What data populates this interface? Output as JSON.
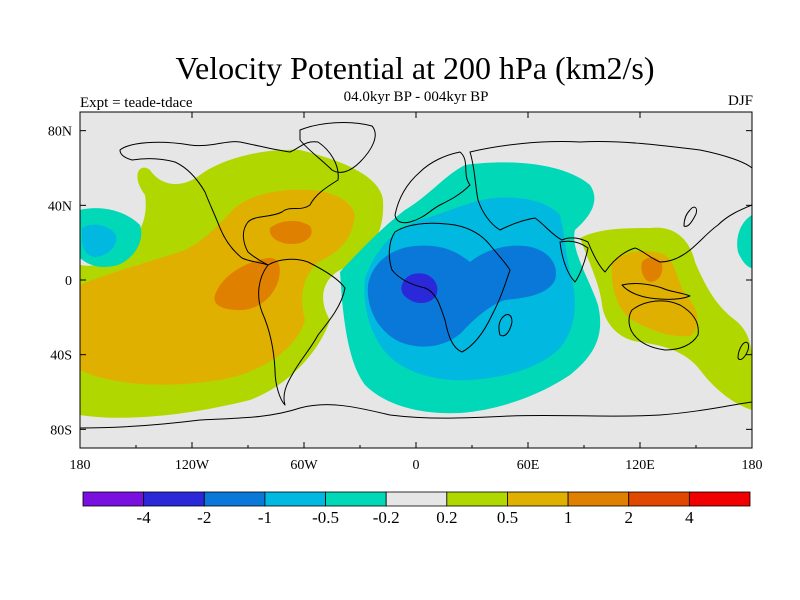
{
  "title": "Velocity Potential at 200 hPa (km2/s)",
  "subtitle": "04.0kyr BP - 004kyr BP",
  "left_label": "Expt = teade-tdace",
  "right_label": "DJF",
  "map": {
    "projection": "cylindrical-equidistant",
    "lon_range": [
      -180,
      180
    ],
    "lat_range": [
      -90,
      90
    ],
    "background_color": "#e6e6e6",
    "coastline_color": "#000000",
    "lon_ticks": [
      {
        "lon": -180,
        "label": "180"
      },
      {
        "lon": -120,
        "label": "120W"
      },
      {
        "lon": -60,
        "label": "60W"
      },
      {
        "lon": 0,
        "label": "0"
      },
      {
        "lon": 60,
        "label": "60E"
      },
      {
        "lon": 120,
        "label": "120E"
      },
      {
        "lon": 180,
        "label": "180"
      }
    ],
    "lat_ticks": [
      {
        "lat": 80,
        "label": "80N"
      },
      {
        "lat": 40,
        "label": "40N"
      },
      {
        "lat": 0,
        "label": "0"
      },
      {
        "lat": -40,
        "label": "40S"
      },
      {
        "lat": -80,
        "label": "80S"
      }
    ]
  },
  "colorbar": {
    "colors": [
      "#7a10e0",
      "#2a28d8",
      "#0a78d8",
      "#00b8e0",
      "#00d8b8",
      "#e6e6e6",
      "#b0d800",
      "#e0b000",
      "#e08000",
      "#e04800",
      "#f00000"
    ],
    "labels": [
      "-4",
      "-2",
      "-1",
      "-0.5",
      "-0.2",
      "0.2",
      "0.5",
      "1",
      "2",
      "4"
    ]
  }
}
